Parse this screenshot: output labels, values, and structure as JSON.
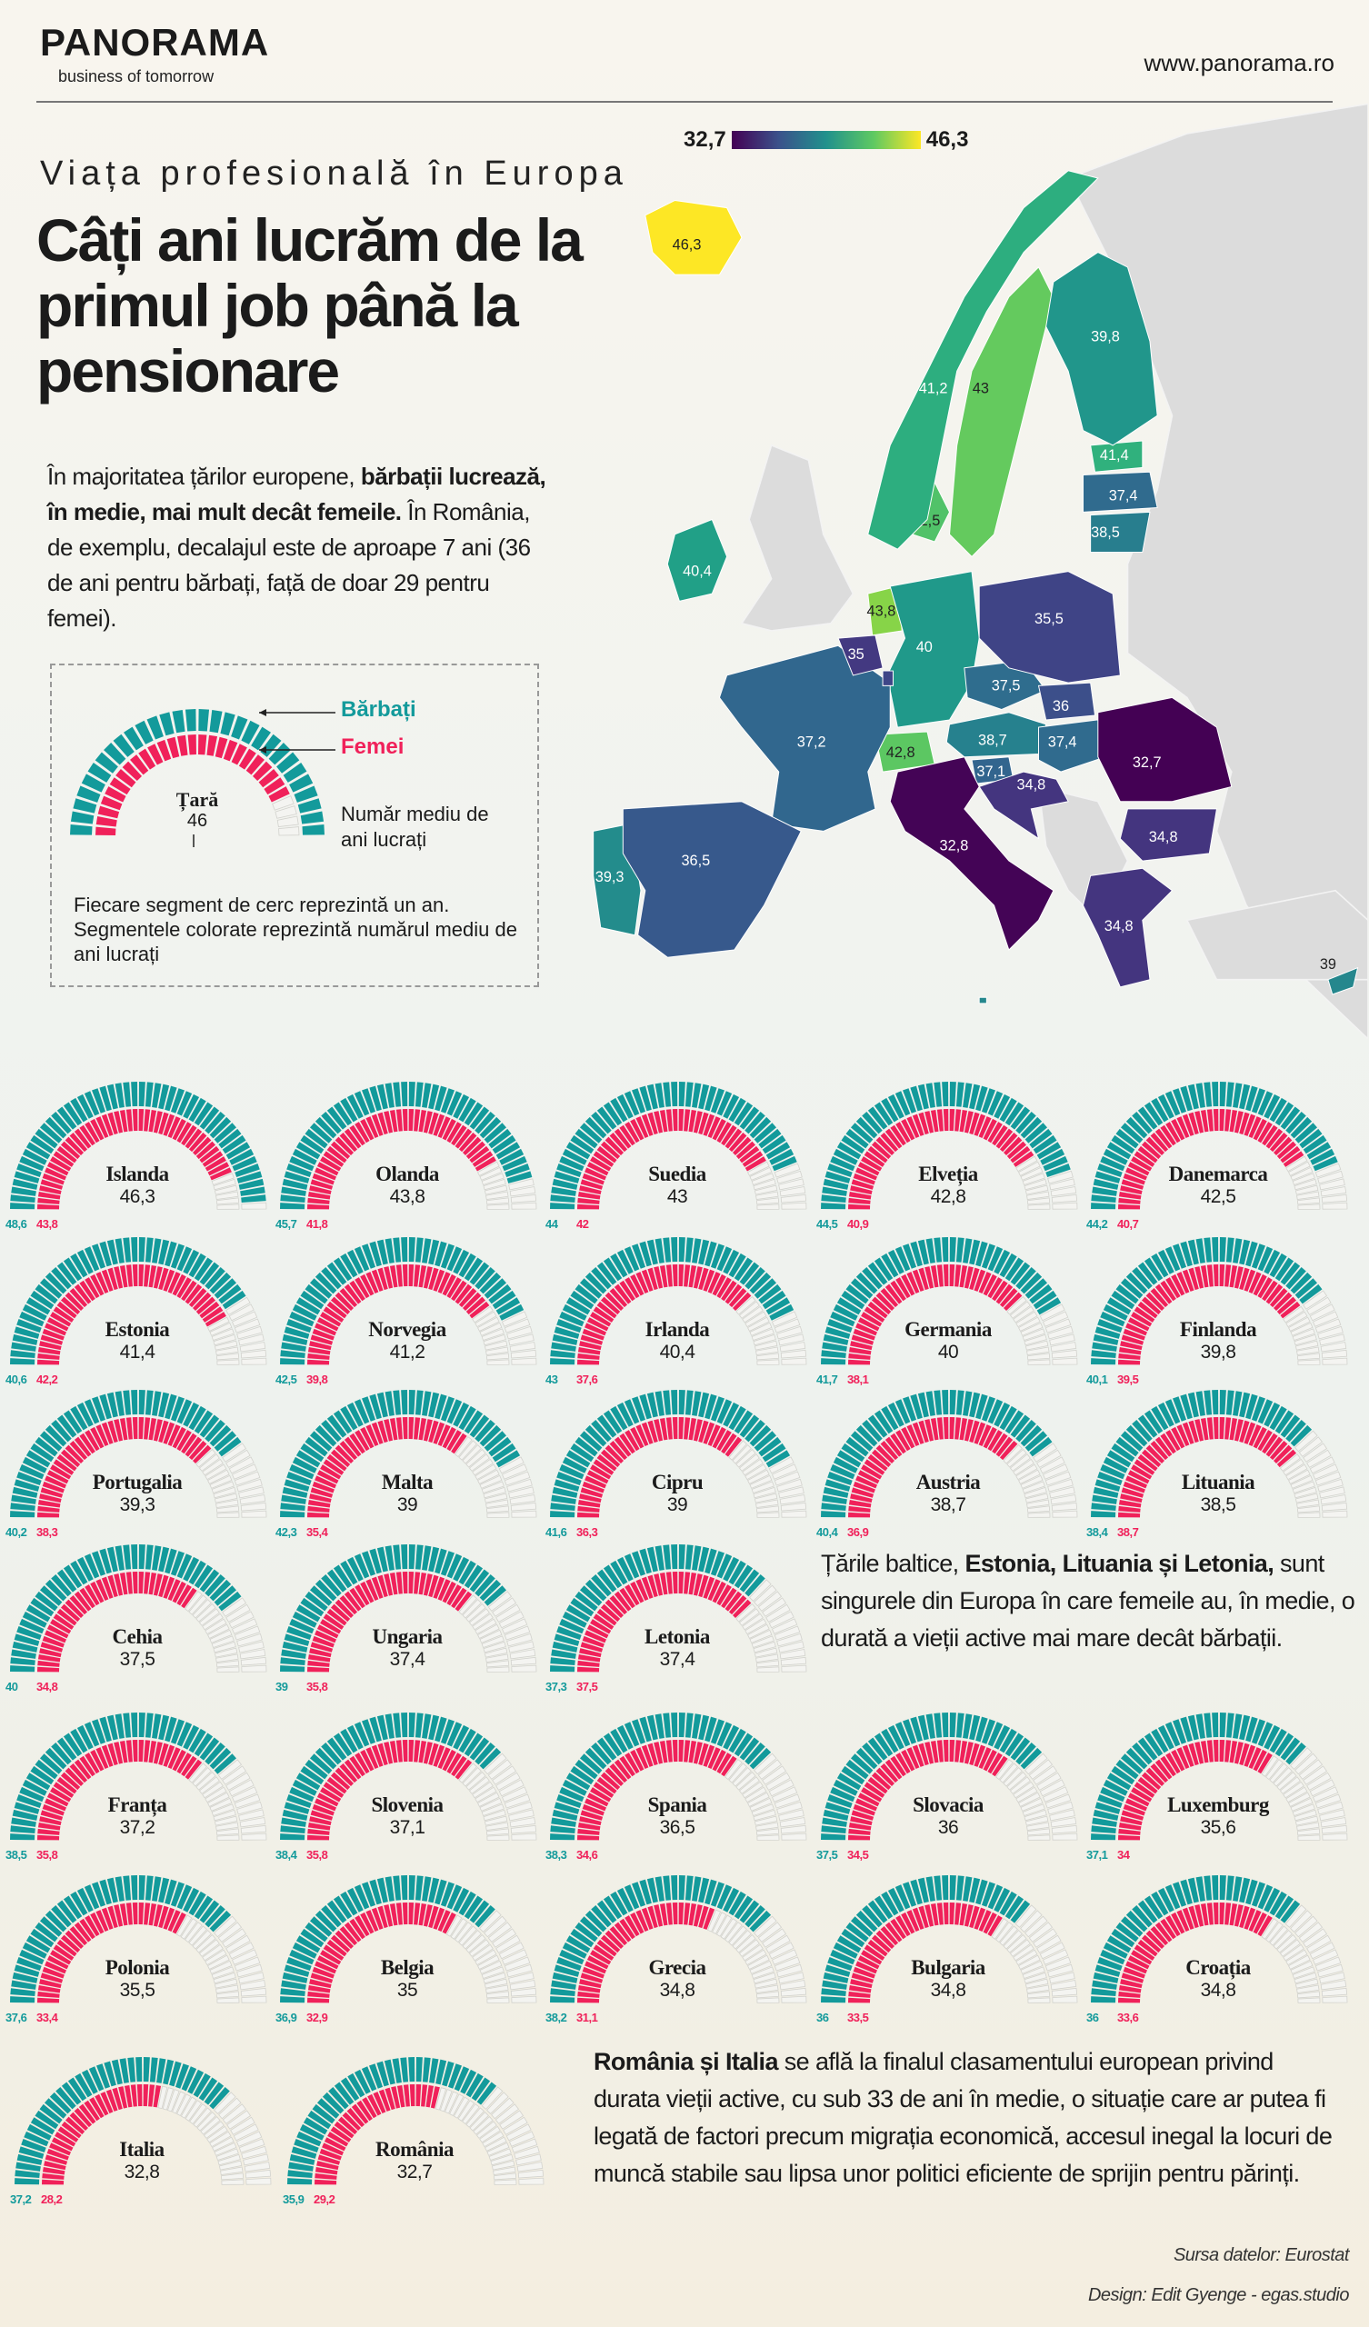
{
  "header": {
    "logo": "PANORAMA",
    "tagline": "business of tomorrow",
    "url": "www.panorama.ro"
  },
  "subtitle": "Viața profesională în Europa",
  "title": "Câți ani lucrăm de la primul job până la pensionare",
  "intro": {
    "pre": "În majoritatea țărilor europene, ",
    "bold": "bărbații lucrează, în medie, mai mult decât femeile.",
    "post": " În România, de exemplu, decalajul este de aproape 7 ani (36 de ani pentru bărbați, față de doar 29 pentru femei)."
  },
  "legend": {
    "men": "Bărbați",
    "women": "Femei",
    "country": "Țară",
    "value": "46",
    "avg_label": "Număr mediu de ani lucrați",
    "explanation": "Fiecare segment de cerc reprezintă un an. Segmentele colorate reprezintă numărul mediu de ani lucrați"
  },
  "colors": {
    "men": "#139a9b",
    "women": "#f0215a",
    "empty": "#e6e6e2"
  },
  "scale": {
    "min_label": "32,7",
    "max_label": "46,3",
    "min": 32.7,
    "max": 46.3
  },
  "chart_data": {
    "type": "table",
    "title": "Câți ani lucrăm de la primul job până la pensionare",
    "max_years": 50,
    "columns": [
      "country",
      "total",
      "men",
      "women"
    ],
    "countries": [
      {
        "name": "Islanda",
        "total": "46,3",
        "men": "48,6",
        "women": "43,8"
      },
      {
        "name": "Olanda",
        "total": "43,8",
        "men": "45,7",
        "women": "41,8"
      },
      {
        "name": "Suedia",
        "total": "43",
        "men": "44",
        "women": "42"
      },
      {
        "name": "Elveția",
        "total": "42,8",
        "men": "44,5",
        "women": "40,9"
      },
      {
        "name": "Danemarca",
        "total": "42,5",
        "men": "44,2",
        "women": "40,7"
      },
      {
        "name": "Estonia",
        "total": "41,4",
        "men": "40,6",
        "women": "42,2"
      },
      {
        "name": "Norvegia",
        "total": "41,2",
        "men": "42,5",
        "women": "39,8"
      },
      {
        "name": "Irlanda",
        "total": "40,4",
        "men": "43",
        "women": "37,6"
      },
      {
        "name": "Germania",
        "total": "40",
        "men": "41,7",
        "women": "38,1"
      },
      {
        "name": "Finlanda",
        "total": "39,8",
        "men": "40,1",
        "women": "39,5"
      },
      {
        "name": "Portugalia",
        "total": "39,3",
        "men": "40,2",
        "women": "38,3"
      },
      {
        "name": "Malta",
        "total": "39",
        "men": "42,3",
        "women": "35,4"
      },
      {
        "name": "Cipru",
        "total": "39",
        "men": "41,6",
        "women": "36,3"
      },
      {
        "name": "Austria",
        "total": "38,7",
        "men": "40,4",
        "women": "36,9"
      },
      {
        "name": "Lituania",
        "total": "38,5",
        "men": "38,4",
        "women": "38,7"
      },
      {
        "name": "Cehia",
        "total": "37,5",
        "men": "40",
        "women": "34,8"
      },
      {
        "name": "Ungaria",
        "total": "37,4",
        "men": "39",
        "women": "35,8"
      },
      {
        "name": "Letonia",
        "total": "37,4",
        "men": "37,3",
        "women": "37,5"
      },
      {
        "name": "Franța",
        "total": "37,2",
        "men": "38,5",
        "women": "35,8"
      },
      {
        "name": "Slovenia",
        "total": "37,1",
        "men": "38,4",
        "women": "35,8"
      },
      {
        "name": "Spania",
        "total": "36,5",
        "men": "38,3",
        "women": "34,6"
      },
      {
        "name": "Slovacia",
        "total": "36",
        "men": "37,5",
        "women": "34,5"
      },
      {
        "name": "Luxemburg",
        "total": "35,6",
        "men": "37,1",
        "women": "34"
      },
      {
        "name": "Polonia",
        "total": "35,5",
        "men": "37,6",
        "women": "33,4"
      },
      {
        "name": "Belgia",
        "total": "35",
        "men": "36,9",
        "women": "32,9"
      },
      {
        "name": "Grecia",
        "total": "34,8",
        "men": "38,2",
        "women": "31,1"
      },
      {
        "name": "Bulgaria",
        "total": "34,8",
        "men": "36",
        "women": "33,5"
      },
      {
        "name": "Croația",
        "total": "34,8",
        "men": "36",
        "women": "33,6"
      },
      {
        "name": "Italia",
        "total": "32,8",
        "men": "37,2",
        "women": "28,2"
      },
      {
        "name": "România",
        "total": "32,7",
        "men": "35,9",
        "women": "29,2"
      }
    ]
  },
  "notes": {
    "baltic_pre": "Țările baltice, ",
    "baltic_bold": "Estonia, Lituania și Letonia,",
    "baltic_post": " sunt singurele din Europa în care femeile au, în medie, o durată a vieții active mai mare decât bărbații.",
    "roit_bold": "România și Italia",
    "roit_post": " se află la finalul clasamentului european privind durata vieții active, cu sub 33 de ani în medie, o situație care ar putea fi legată de factori precum migrația economică, accesul inegal la locuri de muncă stabile sau lipsa unor politici eficiente de sprijin pentru părinți."
  },
  "footer": {
    "source": "Sursa datelor: Eurostat",
    "design": "Design: Edit Gyenge - egas.studio"
  }
}
